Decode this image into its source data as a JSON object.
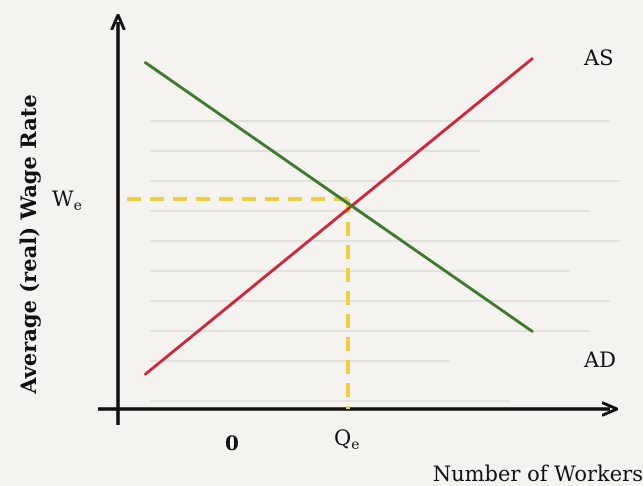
{
  "chart_data": {
    "type": "line",
    "title": "",
    "xlabel": "Number of Workers",
    "ylabel": "Average (real) Wage Rate",
    "x_tick_labels": {
      "origin": "0",
      "equilibrium": "Qe"
    },
    "y_tick_labels": {
      "equilibrium": "We"
    },
    "xlim": [
      0,
      10
    ],
    "ylim": [
      0,
      10
    ],
    "series": [
      {
        "name": "AS",
        "color": "#d0253a",
        "x": [
          0.6,
          9.0
        ],
        "y": [
          0.9,
          9.0
        ]
      },
      {
        "name": "AD",
        "color": "#3e7a2d",
        "x": [
          0.6,
          9.0
        ],
        "y": [
          8.9,
          2.0
        ]
      }
    ],
    "equilibrium": {
      "x": 5.0,
      "y": 5.4,
      "color": "#f0cf3a",
      "style": "dashed"
    },
    "grid": false,
    "legend": "none"
  }
}
